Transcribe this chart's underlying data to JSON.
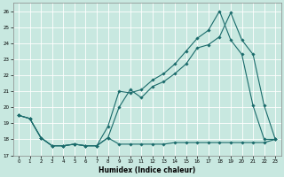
{
  "xlabel": "Humidex (Indice chaleur)",
  "bg_color": "#c8e8e0",
  "grid_color": "#ffffff",
  "line_color": "#1a6b6b",
  "xlim": [
    -0.5,
    23.5
  ],
  "ylim": [
    17,
    26.5
  ],
  "yticks": [
    17,
    18,
    19,
    20,
    21,
    22,
    23,
    24,
    25,
    26
  ],
  "xticks": [
    0,
    1,
    2,
    3,
    4,
    5,
    6,
    7,
    8,
    9,
    10,
    11,
    12,
    13,
    14,
    15,
    16,
    17,
    18,
    19,
    20,
    21,
    22,
    23
  ],
  "line1_x": [
    0,
    1,
    2,
    3,
    4,
    5,
    6,
    7,
    8,
    9,
    10,
    11,
    12,
    13,
    14,
    15,
    16,
    17,
    18,
    19,
    20,
    21,
    22,
    23
  ],
  "line1_y": [
    19.5,
    19.3,
    18.1,
    17.6,
    17.6,
    17.7,
    17.6,
    17.6,
    18.1,
    17.7,
    17.7,
    17.7,
    17.7,
    17.7,
    17.8,
    17.8,
    17.8,
    17.8,
    17.8,
    17.8,
    17.8,
    17.8,
    17.8,
    18.0
  ],
  "line2_x": [
    0,
    1,
    2,
    3,
    4,
    5,
    6,
    7,
    8,
    9,
    10,
    11,
    12,
    13,
    14,
    15,
    16,
    17,
    18,
    19,
    20,
    21,
    22,
    23
  ],
  "line2_y": [
    19.5,
    19.3,
    18.1,
    17.6,
    17.6,
    17.7,
    17.6,
    17.6,
    18.1,
    20.0,
    21.1,
    20.6,
    21.3,
    21.6,
    22.1,
    22.7,
    23.7,
    23.9,
    24.4,
    25.9,
    24.2,
    23.3,
    20.1,
    18.0
  ],
  "line3_x": [
    0,
    1,
    2,
    3,
    4,
    5,
    6,
    7,
    8,
    9,
    10,
    11,
    12,
    13,
    14,
    15,
    16,
    17,
    18,
    19,
    20,
    21,
    22,
    23
  ],
  "line3_y": [
    19.5,
    19.3,
    18.1,
    17.6,
    17.6,
    17.7,
    17.6,
    17.6,
    18.8,
    21.0,
    20.9,
    21.1,
    21.7,
    22.1,
    22.7,
    23.5,
    24.3,
    24.8,
    26.0,
    24.2,
    23.3,
    20.1,
    18.0,
    18.0
  ]
}
